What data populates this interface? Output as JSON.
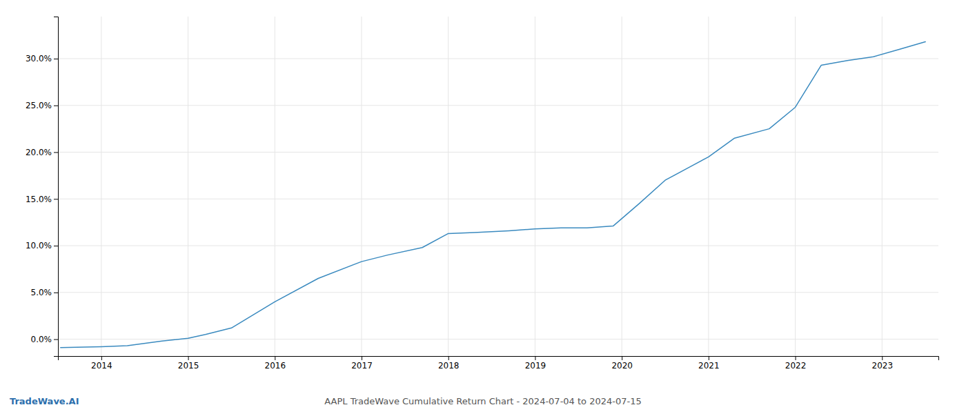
{
  "chart_data": {
    "type": "line",
    "title": "AAPL TradeWave Cumulative Return Chart - 2024-07-04 to 2024-07-15",
    "annotations": [
      {
        "text": "TradeWave.AI",
        "color": "#2c6fad"
      }
    ],
    "x": [
      2013.53,
      2014.0,
      2014.3,
      2014.7,
      2015.0,
      2015.2,
      2015.5,
      2016.0,
      2016.5,
      2017.0,
      2017.3,
      2017.7,
      2018.0,
      2018.3,
      2018.7,
      2019.0,
      2019.3,
      2019.6,
      2019.9,
      2020.2,
      2020.5,
      2020.8,
      2021.0,
      2021.3,
      2021.7,
      2022.0,
      2022.3,
      2022.6,
      2022.9,
      2023.2,
      2023.5
    ],
    "values": [
      -0.009,
      -0.008,
      -0.007,
      -0.002,
      0.001,
      0.005,
      0.012,
      0.04,
      0.065,
      0.083,
      0.09,
      0.098,
      0.113,
      0.114,
      0.116,
      0.118,
      0.119,
      0.119,
      0.121,
      0.145,
      0.17,
      0.185,
      0.195,
      0.215,
      0.225,
      0.248,
      0.293,
      0.298,
      0.302,
      0.31,
      0.318
    ],
    "color": "#3a8abf",
    "xlim": [
      2013.5,
      2023.65
    ],
    "ylim": [
      -0.018,
      0.345
    ],
    "xticks": [
      2014,
      2015,
      2016,
      2017,
      2018,
      2019,
      2020,
      2021,
      2022,
      2023
    ],
    "yticks": [
      {
        "value": 0.0,
        "label": "0.0%"
      },
      {
        "value": 0.05,
        "label": "5.0%"
      },
      {
        "value": 0.1,
        "label": "10.0%"
      },
      {
        "value": 0.15,
        "label": "15.0%"
      },
      {
        "value": 0.2,
        "label": "20.0%"
      },
      {
        "value": 0.25,
        "label": "25.0%"
      },
      {
        "value": 0.3,
        "label": "30.0%"
      }
    ],
    "grid": true
  }
}
